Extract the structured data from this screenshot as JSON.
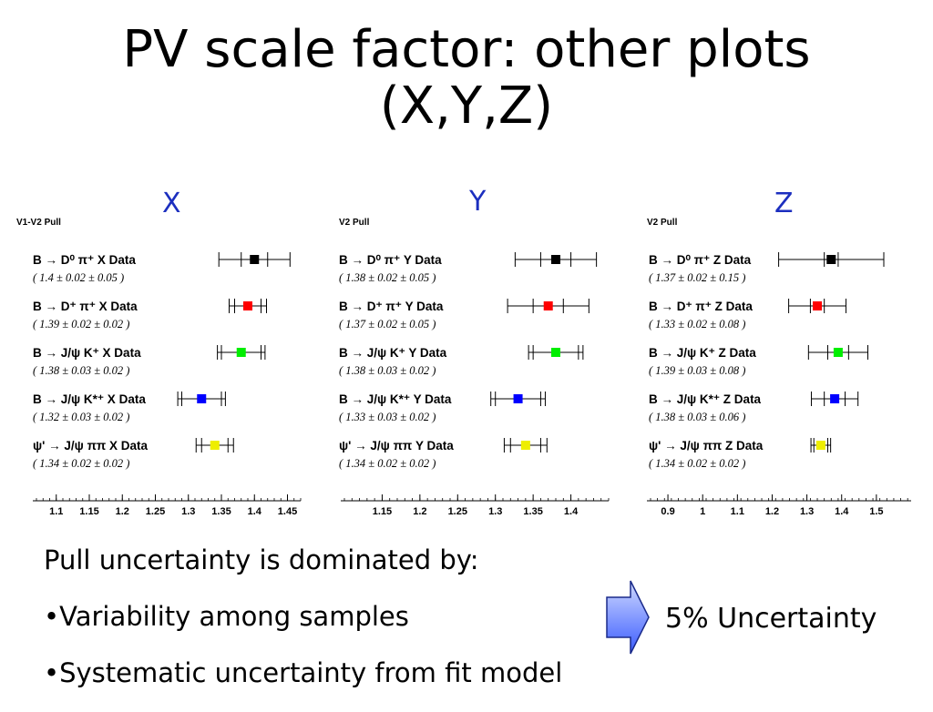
{
  "slide": {
    "title_line1": "PV scale factor: other plots",
    "title_line2": "(X,Y,Z)",
    "bullet_heading": "Pull uncertainty is dominated by:",
    "bullets": [
      "•Variability among samples",
      "•Systematic uncertainty from fit model"
    ],
    "conclusion": "5% Uncertainty",
    "arrow_color": "#4f77ff"
  },
  "chart_data": [
    {
      "type": "scatter",
      "label": "X",
      "title": "V1-V2 Pull",
      "xlim": [
        1.07,
        1.47
      ],
      "ticks": [
        1.1,
        1.15,
        1.2,
        1.25,
        1.3,
        1.35,
        1.4,
        1.45
      ],
      "tick_labels": [
        "1.1",
        "1.15",
        "1.2",
        "1.25",
        "1.3",
        "1.35",
        "1.4",
        "1.45"
      ],
      "series": [
        {
          "name": "B → D⁰ π⁺ X Data",
          "value": 1.4,
          "stat": 0.02,
          "syst": 0.05,
          "label": "( 1.4 ± 0.02 ± 0.05 )",
          "color": "#000000"
        },
        {
          "name": "B → D⁺ π⁺ X Data",
          "value": 1.39,
          "stat": 0.02,
          "syst": 0.02,
          "label": "( 1.39 ± 0.02 ± 0.02 )",
          "color": "#ff0000"
        },
        {
          "name": "B → J/ψ K⁺ X Data",
          "value": 1.38,
          "stat": 0.03,
          "syst": 0.02,
          "label": "( 1.38 ± 0.03 ± 0.02 )",
          "color": "#00ee00"
        },
        {
          "name": "B → J/ψ K*⁺ X Data",
          "value": 1.32,
          "stat": 0.03,
          "syst": 0.02,
          "label": "( 1.32 ± 0.03 ± 0.02 )",
          "color": "#0000ff"
        },
        {
          "name": "ψ' → J/ψ ππ X Data",
          "value": 1.34,
          "stat": 0.02,
          "syst": 0.02,
          "label": "( 1.34 ± 0.02 ± 0.02 )",
          "color": "#eeee00"
        }
      ]
    },
    {
      "type": "scatter",
      "label": "Y",
      "title": "V2 Pull",
      "xlim": [
        1.1,
        1.45
      ],
      "ticks": [
        1.15,
        1.2,
        1.25,
        1.3,
        1.35,
        1.4
      ],
      "tick_labels": [
        "1.15",
        "1.2",
        "1.25",
        "1.3",
        "1.35",
        "1.4"
      ],
      "series": [
        {
          "name": "B → D⁰ π⁺ Y Data",
          "value": 1.38,
          "stat": 0.02,
          "syst": 0.05,
          "label": "( 1.38 ± 0.02 ± 0.05 )",
          "color": "#000000"
        },
        {
          "name": "B → D⁺ π⁺ Y Data",
          "value": 1.37,
          "stat": 0.02,
          "syst": 0.05,
          "label": "( 1.37 ± 0.02 ± 0.05 )",
          "color": "#ff0000"
        },
        {
          "name": "B → J/ψ K⁺ Y Data",
          "value": 1.38,
          "stat": 0.03,
          "syst": 0.02,
          "label": "( 1.38 ± 0.03 ± 0.02 )",
          "color": "#00ee00"
        },
        {
          "name": "B → J/ψ K*⁺ Y Data",
          "value": 1.33,
          "stat": 0.03,
          "syst": 0.02,
          "label": "( 1.33 ± 0.03 ± 0.02 )",
          "color": "#0000ff"
        },
        {
          "name": "ψ' → J/ψ ππ Y Data",
          "value": 1.34,
          "stat": 0.02,
          "syst": 0.02,
          "label": "( 1.34 ± 0.02 ± 0.02 )",
          "color": "#eeee00"
        }
      ]
    },
    {
      "type": "scatter",
      "label": "Z",
      "title": "V2 Pull",
      "xlim": [
        0.85,
        1.6
      ],
      "ticks": [
        0.9,
        1,
        1.1,
        1.2,
        1.3,
        1.4,
        1.5
      ],
      "tick_labels": [
        "0.9",
        "1",
        "1.1",
        "1.2",
        "1.3",
        "1.4",
        "1.5"
      ],
      "series": [
        {
          "name": "B → D⁰ π⁺ Z Data",
          "value": 1.37,
          "stat": 0.02,
          "syst": 0.15,
          "label": "( 1.37 ± 0.02 ± 0.15 )",
          "color": "#000000"
        },
        {
          "name": "B → D⁺ π⁺ Z Data",
          "value": 1.33,
          "stat": 0.02,
          "syst": 0.08,
          "label": "( 1.33 ± 0.02 ± 0.08 )",
          "color": "#ff0000"
        },
        {
          "name": "B → J/ψ K⁺ Z Data",
          "value": 1.39,
          "stat": 0.03,
          "syst": 0.08,
          "label": "( 1.39 ± 0.03 ± 0.08 )",
          "color": "#00ee00"
        },
        {
          "name": "B → J/ψ K*⁺ Z Data",
          "value": 1.38,
          "stat": 0.03,
          "syst": 0.06,
          "label": "( 1.38 ± 0.03 ± 0.06 )",
          "color": "#0000ff"
        },
        {
          "name": "ψ' → J/ψ ππ Z Data",
          "value": 1.34,
          "stat": 0.02,
          "syst": 0.02,
          "label": "( 1.34 ± 0.02 ± 0.02 )",
          "color": "#eeee00"
        }
      ]
    }
  ]
}
